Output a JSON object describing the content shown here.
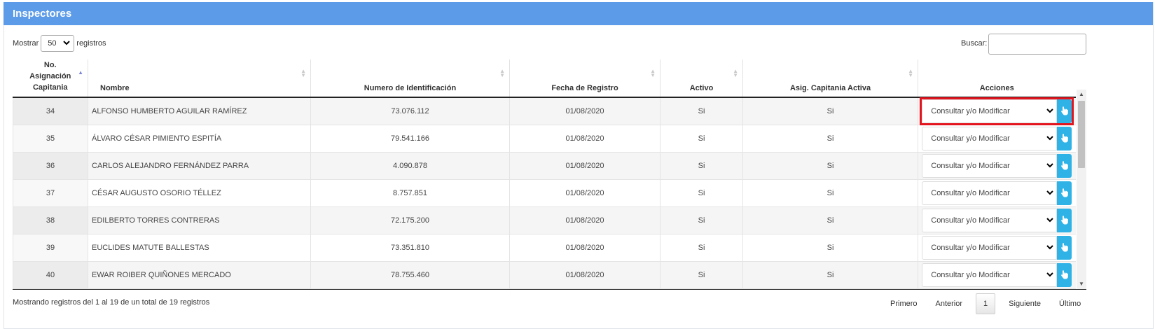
{
  "panel": {
    "title": "Inspectores"
  },
  "length": {
    "prefix": "Mostrar",
    "value": "50",
    "suffix": "registros"
  },
  "search": {
    "label": "Buscar:",
    "value": ""
  },
  "columns": [
    "No. Asignación Capitania",
    "Nombre",
    "Numero de Identificación",
    "Fecha de Registro",
    "Activo",
    "Asig. Capitania Activa",
    "Acciones"
  ],
  "rows": [
    {
      "no": "34",
      "nombre": "ALFONSO HUMBERTO AGUILAR RAMÍREZ",
      "id": "73.076.112",
      "fecha": "01/08/2020",
      "activo": "Si",
      "asig": "Si",
      "accion": "Consultar y/o Modificar"
    },
    {
      "no": "35",
      "nombre": "ÁLVARO CÉSAR PIMIENTO ESPITÍA",
      "id": "79.541.166",
      "fecha": "01/08/2020",
      "activo": "Si",
      "asig": "Si",
      "accion": "Consultar y/o Modificar"
    },
    {
      "no": "36",
      "nombre": "CARLOS ALEJANDRO FERNÁNDEZ PARRA",
      "id": "4.090.878",
      "fecha": "01/08/2020",
      "activo": "Si",
      "asig": "Si",
      "accion": "Consultar y/o Modificar"
    },
    {
      "no": "37",
      "nombre": "CÉSAR AUGUSTO OSORIO TÉLLEZ",
      "id": "8.757.851",
      "fecha": "01/08/2020",
      "activo": "Si",
      "asig": "Si",
      "accion": "Consultar y/o Modificar"
    },
    {
      "no": "38",
      "nombre": "EDILBERTO TORRES CONTRERAS",
      "id": "72.175.200",
      "fecha": "01/08/2020",
      "activo": "Si",
      "asig": "Si",
      "accion": "Consultar y/o Modificar"
    },
    {
      "no": "39",
      "nombre": "EUCLIDES MATUTE BALLESTAS",
      "id": "73.351.810",
      "fecha": "01/08/2020",
      "activo": "Si",
      "asig": "Si",
      "accion": "Consultar y/o Modificar"
    },
    {
      "no": "40",
      "nombre": "EWAR ROIBER QUIÑONES MERCADO",
      "id": "78.755.460",
      "fecha": "01/08/2020",
      "activo": "Si",
      "asig": "Si",
      "accion": "Consultar y/o Modificar"
    },
    {
      "no": "",
      "nombre": "",
      "id": "",
      "fecha": "",
      "activo": "",
      "asig": "",
      "accion": ""
    }
  ],
  "footer": {
    "info": "Mostrando registros del 1 al 19 de un total de 19 registros"
  },
  "pagination": {
    "first": "Primero",
    "prev": "Anterior",
    "current": "1",
    "next": "Siguiente",
    "last": "Último"
  },
  "colors": {
    "header": "#5b9be8",
    "action_button": "#2fb2e6",
    "highlight": "#e3141d"
  },
  "icons": {
    "action_button": "hand-pointer-icon"
  }
}
